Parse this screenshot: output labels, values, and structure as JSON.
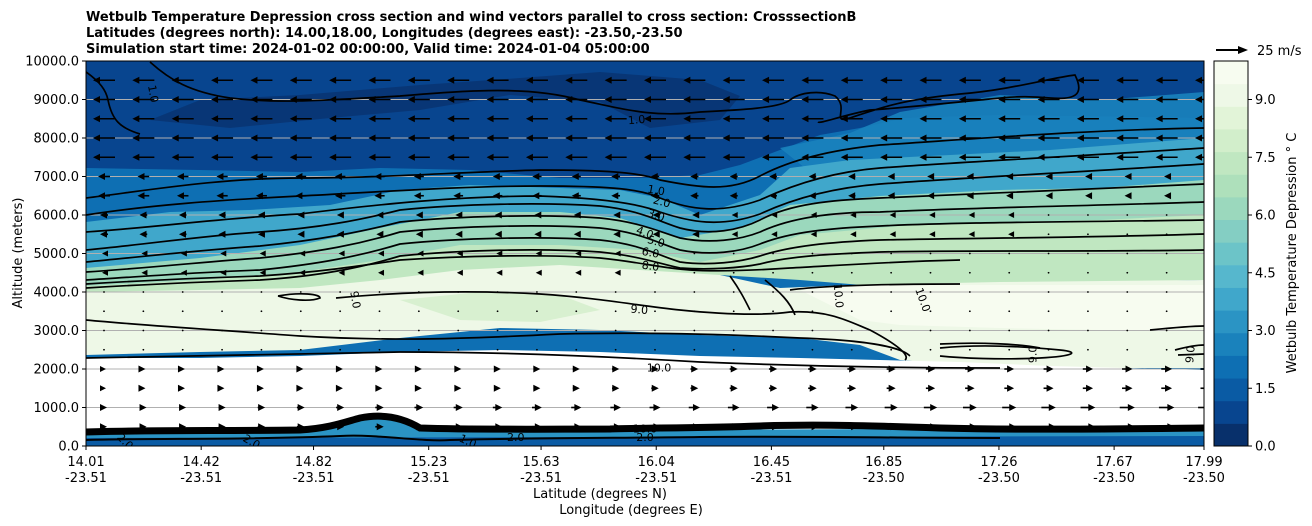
{
  "chart_data": {
    "type": "contour",
    "title_lines": [
      "Wetbulb Temperature Depression cross section and wind vectors parallel to cross section: CrosssectionB",
      "Latitudes (degrees north): 14.00,18.00, Longitudes (degrees east): -23.50,-23.50",
      "Simulation start time: 2024-01-02 00:00:00, Valid time: 2024-01-04 05:00:00"
    ],
    "ylabel": "Altitude (meters)",
    "xlabel_lat": "Latitude (degrees N)",
    "xlabel_lon": "Longitude (degrees E)",
    "ylim": [
      0,
      10000
    ],
    "y_ticks": [
      "0.0",
      "1000.0",
      "2000.0",
      "3000.0",
      "4000.0",
      "5000.0",
      "6000.0",
      "7000.0",
      "8000.0",
      "9000.0",
      "10000.0"
    ],
    "y_tick_values": [
      0,
      1000,
      2000,
      3000,
      4000,
      5000,
      6000,
      7000,
      8000,
      9000,
      10000
    ],
    "x_ticks": [
      {
        "lat": "14.01",
        "lon": "-23.51"
      },
      {
        "lat": "14.42",
        "lon": "-23.51"
      },
      {
        "lat": "14.82",
        "lon": "-23.51"
      },
      {
        "lat": "15.23",
        "lon": "-23.51"
      },
      {
        "lat": "15.63",
        "lon": "-23.51"
      },
      {
        "lat": "16.04",
        "lon": "-23.51"
      },
      {
        "lat": "16.45",
        "lon": "-23.51"
      },
      {
        "lat": "16.85",
        "lon": "-23.50"
      },
      {
        "lat": "17.26",
        "lon": "-23.50"
      },
      {
        "lat": "17.67",
        "lon": "-23.50"
      },
      {
        "lat": "17.99",
        "lon": "-23.50"
      }
    ],
    "x_tick_values": [
      14.01,
      14.42,
      14.82,
      15.23,
      15.63,
      16.04,
      16.45,
      16.85,
      17.26,
      17.67,
      17.99
    ],
    "xlim": [
      14.01,
      17.99
    ],
    "colorbar": {
      "label": "Wetbulb Temperature Depression ° C",
      "range": [
        0,
        10
      ],
      "ticks": [
        "0.0",
        "1.5",
        "3.0",
        "4.5",
        "6.0",
        "7.5",
        "9.0"
      ],
      "tick_values": [
        0,
        1.5,
        3.0,
        4.5,
        6.0,
        7.5,
        9.0
      ],
      "colors": [
        "#08306b",
        "#08458f",
        "#0a5ba4",
        "#0e6fb3",
        "#1a82bc",
        "#2b94c4",
        "#40a7cb",
        "#56b7cd",
        "#6cc4c8",
        "#84cec3",
        "#9bd8bd",
        "#aee0bb",
        "#c0e7c1",
        "#d2eecb",
        "#e2f4d8",
        "#eef8e7",
        "#f7fcf0"
      ]
    },
    "quiver_key": {
      "label": "25 m/s",
      "value": 25
    },
    "contour_labels": [
      {
        "text": "1.0",
        "lat": 14.25,
        "alt": 9150,
        "rot": 80
      },
      {
        "text": "1.0",
        "lat": 15.97,
        "alt": 8480,
        "rot": -5
      },
      {
        "text": "1.0",
        "lat": 16.04,
        "alt": 6650,
        "rot": 10
      },
      {
        "text": "2.0",
        "lat": 16.06,
        "alt": 6350,
        "rot": 15
      },
      {
        "text": "3.0",
        "lat": 16.04,
        "alt": 6000,
        "rot": 18
      },
      {
        "text": "4.0",
        "lat": 16.0,
        "alt": 5550,
        "rot": 20
      },
      {
        "text": "5.0",
        "lat": 16.04,
        "alt": 5320,
        "rot": 15
      },
      {
        "text": "6.0",
        "lat": 16.02,
        "alt": 5030,
        "rot": 10
      },
      {
        "text": "8.0",
        "lat": 16.02,
        "alt": 4680,
        "rot": 8
      },
      {
        "text": "9.0",
        "lat": 14.97,
        "alt": 3800,
        "rot": 80
      },
      {
        "text": "10.0",
        "lat": 16.69,
        "alt": 3900,
        "rot": 85
      },
      {
        "text": "10.0",
        "lat": 16.99,
        "alt": 3800,
        "rot": 70
      },
      {
        "text": "9.0",
        "lat": 15.98,
        "alt": 3550,
        "rot": 5
      },
      {
        "text": "9.0",
        "lat": 17.38,
        "alt": 2380,
        "rot": -90
      },
      {
        "text": "9.0",
        "lat": 17.94,
        "alt": 2380,
        "rot": -85
      },
      {
        "text": "10.0",
        "lat": 16.05,
        "alt": 2040,
        "rot": 0
      },
      {
        "text": "10.0",
        "lat": 16.0,
        "alt": 460,
        "rot": 0
      },
      {
        "text": "2.0",
        "lat": 16.0,
        "alt": 240,
        "rot": 0
      },
      {
        "text": "2.0",
        "lat": 14.15,
        "alt": 120,
        "rot": 45
      },
      {
        "text": "2.0",
        "lat": 14.6,
        "alt": 120,
        "rot": 30
      },
      {
        "text": "1.0",
        "lat": 15.37,
        "alt": 130,
        "rot": 25
      },
      {
        "text": "2.0",
        "lat": 15.54,
        "alt": 230,
        "rot": 0
      }
    ]
  }
}
